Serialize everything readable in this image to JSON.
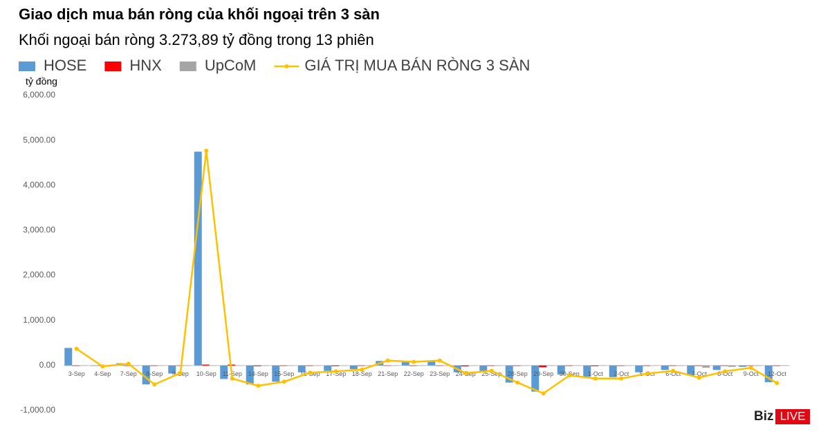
{
  "chart_data": {
    "type": "bar-line",
    "title": "Giao dịch mua bán ròng của khối ngoại trên 3 sàn",
    "subtitle": "Khối ngoại bán ròng 3.273,89 tỷ đồng trong 13 phiên",
    "y_label": "tỷ đồng",
    "categories": [
      "3-Sep",
      "4-Sep",
      "7-Sep",
      "8-Sep",
      "9-Sep",
      "10-Sep",
      "11-Sep",
      "14-Sep",
      "15-Sep",
      "16-Sep",
      "17-Sep",
      "18-Sep",
      "21-Sep",
      "22-Sep",
      "23-Sep",
      "24-Sep",
      "25-Sep",
      "28-Sep",
      "29-Sep",
      "30-Sep",
      "1-Oct",
      "2-Oct",
      "5-Oct",
      "6-Oct",
      "7-Oct",
      "8-Oct",
      "9-Oct",
      "12-Oct"
    ],
    "series": [
      {
        "name": "HOSE",
        "type": "bar",
        "color": "#5b9bd5",
        "values": [
          390,
          -10,
          50,
          -420,
          -180,
          4750,
          -300,
          -420,
          -360,
          -150,
          -120,
          -80,
          100,
          80,
          90,
          -150,
          -120,
          -380,
          -580,
          -200,
          -250,
          -260,
          -150,
          -100,
          -220,
          -100,
          -30,
          -370
        ]
      },
      {
        "name": "HNX",
        "type": "bar",
        "color": "#ff0000",
        "values": [
          -10,
          -5,
          -10,
          -10,
          -5,
          20,
          20,
          -15,
          -10,
          -10,
          -15,
          -10,
          -5,
          -10,
          -5,
          -20,
          -10,
          -10,
          -40,
          -10,
          -15,
          -10,
          -10,
          -10,
          -10,
          -10,
          -5,
          -10
        ]
      },
      {
        "name": "UpCoM",
        "type": "bar",
        "color": "#a5a5a5",
        "values": [
          -5,
          -5,
          -5,
          -5,
          -5,
          -5,
          -5,
          -10,
          -5,
          -5,
          -5,
          -5,
          -5,
          -5,
          -5,
          -5,
          -5,
          -5,
          -5,
          -5,
          -5,
          -5,
          -5,
          -10,
          -50,
          -30,
          -10,
          -5
        ]
      },
      {
        "name": "GIÁ TRỊ MUA BÁN RÒNG 3 SÀN",
        "type": "line",
        "color": "#ffc000",
        "values": [
          370,
          -20,
          40,
          -420,
          -170,
          4770,
          -290,
          -450,
          -360,
          -160,
          -130,
          -90,
          110,
          80,
          110,
          -170,
          -120,
          -380,
          -620,
          -220,
          -290,
          -290,
          -180,
          -120,
          -270,
          -130,
          -50,
          -390
        ]
      }
    ],
    "ylim": [
      -1000,
      6000
    ],
    "yticks": [
      {
        "value": -1000,
        "label": "-1,000.00"
      },
      {
        "value": 0,
        "label": "0.00"
      },
      {
        "value": 1000,
        "label": "1,000.00"
      },
      {
        "value": 2000,
        "label": "2,000.00"
      },
      {
        "value": 3000,
        "label": "3,000.00"
      },
      {
        "value": 4000,
        "label": "4,000.00"
      },
      {
        "value": 5000,
        "label": "5,000.00"
      },
      {
        "value": 6000,
        "label": "6,000.00"
      }
    ],
    "grid": false,
    "legend": "top"
  },
  "logo": {
    "left": "Biz",
    "right": "LIVE"
  }
}
